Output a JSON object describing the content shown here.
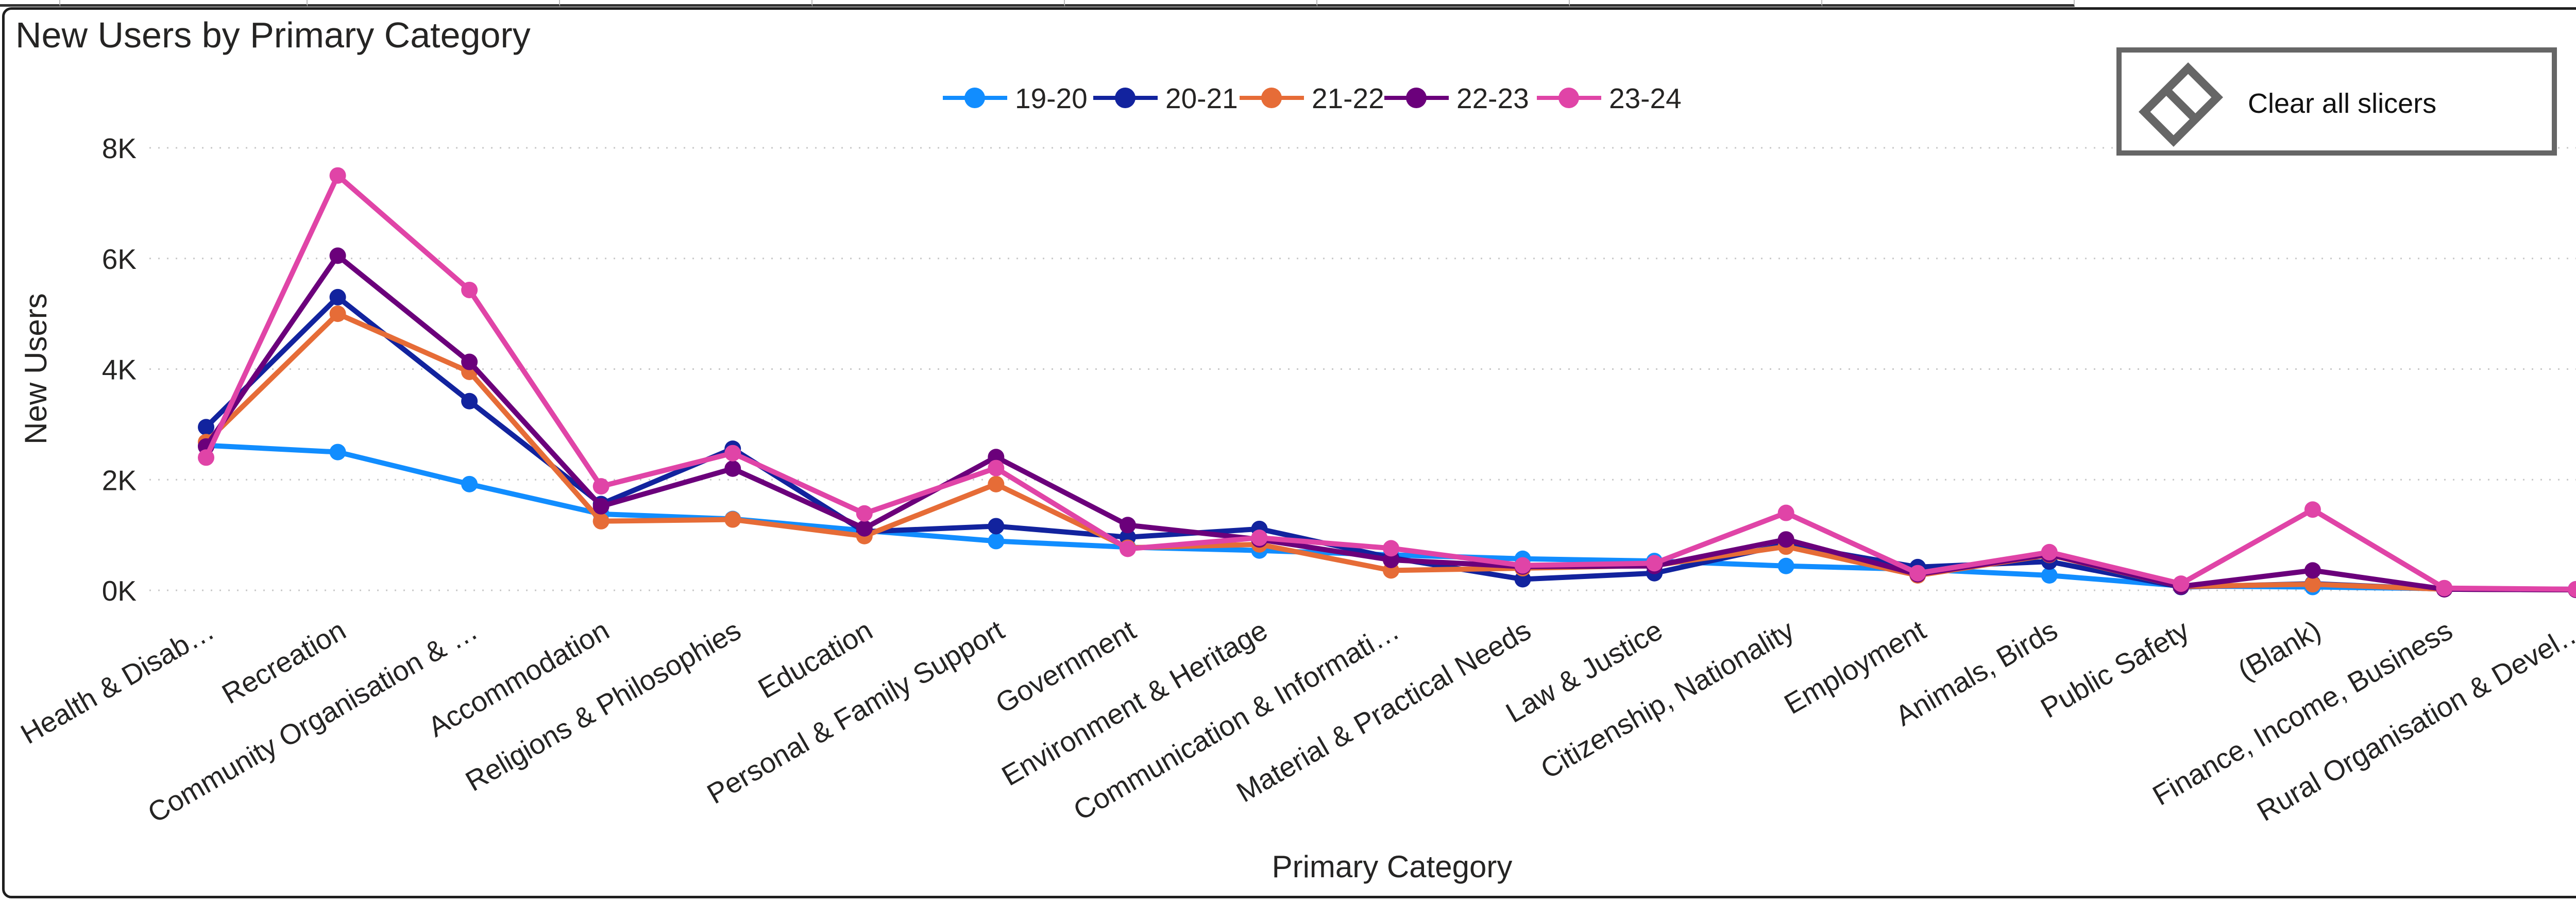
{
  "visual": {
    "title": "New Users by Primary Category",
    "clear_button_label": "Clear all slicers"
  },
  "icons": {
    "clear_slicers": "eraser-icon"
  },
  "chart_data": {
    "type": "line",
    "title": "New Users by Primary Category",
    "xlabel": "Primary Category",
    "ylabel": "New Users",
    "ylim": [
      0,
      8000
    ],
    "yticks": [
      0,
      2000,
      4000,
      6000,
      8000
    ],
    "ytick_labels": [
      "0K",
      "2K",
      "4K",
      "6K",
      "8K"
    ],
    "grid": true,
    "legend_position": "top-center",
    "categories": [
      "Health & Disab…",
      "Recreation",
      "Community Organisation & …",
      "Accommodation",
      "Religions & Philosophies",
      "Education",
      "Personal & Family Support",
      "Government",
      "Environment & Heritage",
      "Communication & Informati…",
      "Material & Practical Needs",
      "Law & Justice",
      "Citizenship, Nationality",
      "Employment",
      "Animals, Birds",
      "Public Safety",
      "(Blank)",
      "Finance, Income, Business",
      "Rural Organisation & Devel…"
    ],
    "series": [
      {
        "name": "19-20",
        "color": "#118DFF",
        "values": [
          2620,
          2500,
          1920,
          1380,
          1290,
          1080,
          890,
          780,
          720,
          640,
          570,
          530,
          440,
          380,
          270,
          80,
          60,
          30,
          20
        ]
      },
      {
        "name": "20-21",
        "color": "#12239E",
        "values": [
          2950,
          5300,
          3420,
          1560,
          2560,
          1060,
          1160,
          960,
          1110,
          590,
          200,
          310,
          830,
          420,
          520,
          60,
          120,
          20,
          10
        ]
      },
      {
        "name": "21-22",
        "color": "#E66C37",
        "values": [
          2680,
          5000,
          3950,
          1250,
          1280,
          980,
          1920,
          770,
          830,
          360,
          400,
          450,
          790,
          270,
          640,
          70,
          110,
          20,
          10
        ]
      },
      {
        "name": "22-23",
        "color": "#6B007B",
        "values": [
          2600,
          6050,
          4130,
          1520,
          2200,
          1120,
          2410,
          1180,
          920,
          550,
          430,
          440,
          920,
          290,
          650,
          70,
          360,
          20,
          10
        ]
      },
      {
        "name": "23-24",
        "color": "#E044A7",
        "values": [
          2400,
          7500,
          5430,
          1880,
          2480,
          1390,
          2210,
          750,
          950,
          760,
          450,
          490,
          1400,
          310,
          690,
          120,
          1460,
          40,
          20
        ]
      }
    ]
  }
}
